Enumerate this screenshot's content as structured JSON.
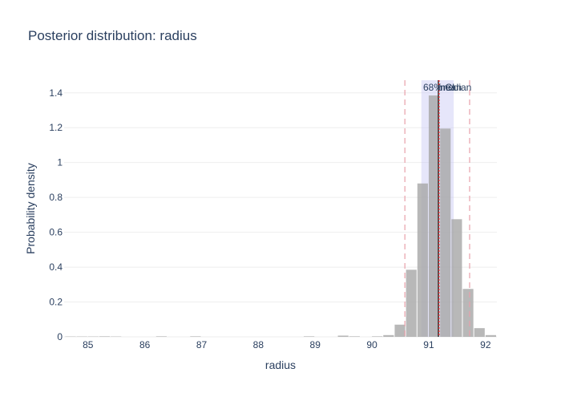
{
  "chart_data": {
    "type": "bar",
    "title": "Posterior distribution: radius",
    "xlabel": "radius",
    "ylabel": "Probability density",
    "xlim": [
      84.58,
      92.2
    ],
    "ylim": [
      0,
      1.4725
    ],
    "xticks": [
      85,
      86,
      87,
      88,
      89,
      90,
      91,
      92
    ],
    "yticks": [
      0,
      0.2,
      0.4,
      0.6,
      0.8,
      1,
      1.2,
      1.4
    ],
    "grid": true,
    "histogram": {
      "bin_width": 0.2,
      "bins": [
        {
          "x0": 84.6,
          "x1": 84.8,
          "value": 0.002
        },
        {
          "x0": 84.8,
          "x1": 85.0,
          "value": 0.002
        },
        {
          "x0": 85.0,
          "x1": 85.2,
          "value": 0.002
        },
        {
          "x0": 85.2,
          "x1": 85.4,
          "value": 0.003
        },
        {
          "x0": 85.4,
          "x1": 85.6,
          "value": 0.002
        },
        {
          "x0": 86.2,
          "x1": 86.4,
          "value": 0.003
        },
        {
          "x0": 86.8,
          "x1": 87.0,
          "value": 0.003
        },
        {
          "x0": 88.8,
          "x1": 89.0,
          "value": 0.003
        },
        {
          "x0": 89.4,
          "x1": 89.6,
          "value": 0.007
        },
        {
          "x0": 89.6,
          "x1": 89.8,
          "value": 0.003
        },
        {
          "x0": 90.0,
          "x1": 90.2,
          "value": 0.003
        },
        {
          "x0": 90.2,
          "x1": 90.4,
          "value": 0.01
        },
        {
          "x0": 90.4,
          "x1": 90.6,
          "value": 0.07
        },
        {
          "x0": 90.6,
          "x1": 90.8,
          "value": 0.385
        },
        {
          "x0": 90.8,
          "x1": 91.0,
          "value": 0.88
        },
        {
          "x0": 91.0,
          "x1": 91.2,
          "value": 1.385
        },
        {
          "x0": 91.2,
          "x1": 91.4,
          "value": 1.195
        },
        {
          "x0": 91.4,
          "x1": 91.6,
          "value": 0.675
        },
        {
          "x0": 91.6,
          "x1": 91.8,
          "value": 0.275
        },
        {
          "x0": 91.8,
          "x1": 92.0,
          "value": 0.05
        },
        {
          "x0": 92.0,
          "x1": 92.2,
          "value": 0.01
        }
      ],
      "color": "#a6a6a6"
    },
    "interval_68": {
      "label": "68% CI",
      "low": 90.87,
      "high": 91.44,
      "color": "#c8c8f5"
    },
    "mean": {
      "label": "mean",
      "x": 91.17,
      "color": "#303030"
    },
    "median": {
      "label": "median",
      "x": 91.18,
      "color": "#d62728"
    },
    "interval_bounds": {
      "low": 90.58,
      "high": 91.72,
      "color": "#e8a0aa"
    }
  }
}
